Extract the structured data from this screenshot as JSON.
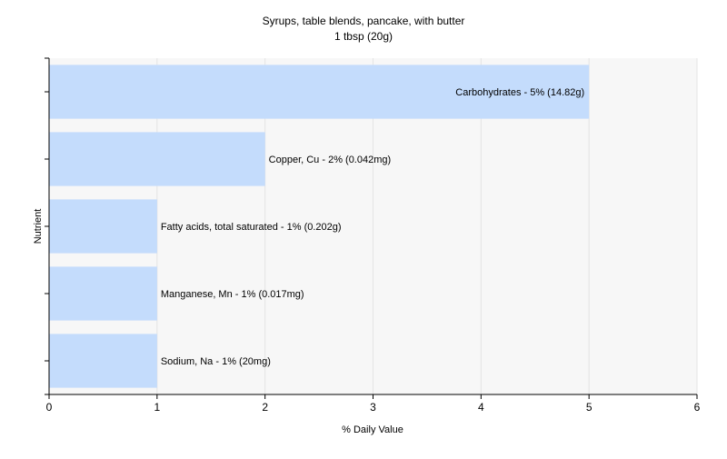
{
  "chart_data": {
    "type": "bar",
    "orientation": "horizontal",
    "title": "Syrups, table blends, pancake, with butter",
    "subtitle": "1 tbsp (20g)",
    "xlabel": "% Daily Value",
    "ylabel": "Nutrient",
    "xlim": [
      0,
      6
    ],
    "xticks": [
      "0",
      "1",
      "2",
      "3",
      "4",
      "5",
      "6"
    ],
    "grid": true,
    "categories": [
      "Carbohydrates",
      "Copper, Cu",
      "Fatty acids, total saturated",
      "Manganese, Mn",
      "Sodium, Na"
    ],
    "values": [
      5,
      2,
      1,
      1,
      1
    ],
    "bar_labels": [
      "Carbohydrates - 5% (14.82g)",
      "Copper, Cu - 2% (0.042mg)",
      "Fatty acids, total saturated - 1% (0.202g)",
      "Manganese, Mn - 1% (0.017mg)",
      "Sodium, Na - 1% (20mg)"
    ],
    "colors": {
      "bar": "#c4dcfc",
      "plot_background": "#f7f7f7",
      "grid": "#e4e4e4",
      "axis": "#000000"
    }
  }
}
